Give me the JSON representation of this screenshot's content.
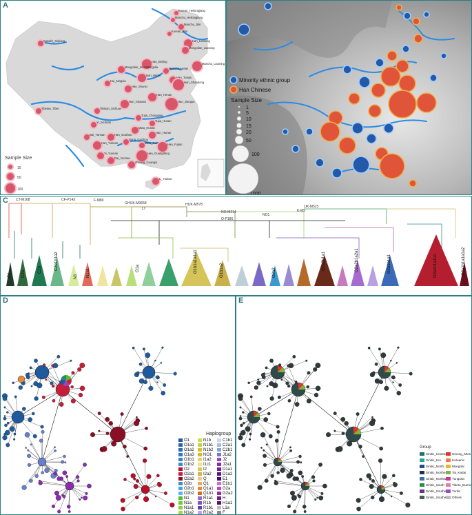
{
  "panels": {
    "a": {
      "label": "A",
      "size_title": "Sample Size",
      "size_values": [
        "10",
        "50",
        "100"
      ],
      "places": [
        {
          "name": "Kazakh_Xinjiang",
          "r": 5
        },
        {
          "name": "Korean_Heilongjiang",
          "r": 4
        },
        {
          "name": "Manchu_Heilongjiang",
          "r": 4
        },
        {
          "name": "Manchu_Jilin",
          "r": 5
        },
        {
          "name": "Korean_Jilin",
          "r": 4
        },
        {
          "name": "Han_Liaoning",
          "r": 7
        },
        {
          "name": "Mongolian_Liaoning",
          "r": 6
        },
        {
          "name": "Han_Beijing",
          "r": 8
        },
        {
          "name": "Manchu_Liaoning",
          "r": 8
        },
        {
          "name": "Mongolian_InnerMongolia",
          "r": 6
        },
        {
          "name": "Manchu_Hebei",
          "r": 5
        },
        {
          "name": "Han_Hebei",
          "r": 7
        },
        {
          "name": "Han_Tianjin",
          "r": 6
        },
        {
          "name": "Han_Shandong",
          "r": 9
        },
        {
          "name": "Hui_Ningxia",
          "r": 5
        },
        {
          "name": "Han_Shanxi",
          "r": 6
        },
        {
          "name": "Han_Henan",
          "r": 7
        },
        {
          "name": "Han_Shaanxi",
          "r": 7
        },
        {
          "name": "Han_Jiangsu",
          "r": 10
        },
        {
          "name": "Tibetan_Tibet",
          "r": 5
        },
        {
          "name": "Tibetan_Sichuan",
          "r": 5
        },
        {
          "name": "Tujia_Chongqing",
          "r": 5
        },
        {
          "name": "Tujia_Hunan",
          "r": 5
        },
        {
          "name": "Yi_Sichuan",
          "r": 5
        },
        {
          "name": "Miao_Hunan",
          "r": 6
        },
        {
          "name": "Han_Hunan",
          "r": 6
        },
        {
          "name": "Han_Guizhou",
          "r": 6
        },
        {
          "name": "Dong_Guizhou",
          "r": 5
        },
        {
          "name": "Miao_Guizhou",
          "r": 5
        },
        {
          "name": "Han_Yunnan",
          "r": 7
        },
        {
          "name": "Bai_Yunnan",
          "r": 5
        },
        {
          "name": "Han_Fujian",
          "r": 8
        },
        {
          "name": "Han_Guangdong",
          "r": 9
        },
        {
          "name": "Yi_Yunnan",
          "r": 6
        },
        {
          "name": "Dai_Yunnan",
          "r": 6
        },
        {
          "name": "Zhuang_Guangxi",
          "r": 6
        },
        {
          "name": "Li_Hainan",
          "r": 6
        }
      ]
    },
    "b": {
      "label": "B",
      "legend": [
        {
          "name": "Minority ethnic group",
          "color": "#2458a8"
        },
        {
          "name": "Han Chinese",
          "color": "#e0553a"
        }
      ],
      "size_title": "Sample Size",
      "size_values": [
        "1",
        "5",
        "10",
        "15",
        "20",
        "50",
        "100",
        "1000"
      ]
    },
    "c": {
      "label": "C",
      "markers": [
        "CT-M168",
        "CF-P143",
        "F-M89",
        "GHIJK-M3658",
        "HIJK-M578",
        "LT",
        "NO-M214",
        "NO1",
        "K-M9",
        "O-P186",
        "IJK-M523"
      ],
      "clades": [
        "C1",
        "C2a",
        "C2b",
        "C2e1b1a2",
        "N1",
        "N1a1",
        "O1a",
        "O1b1a1a1a1",
        "O1b1a2",
        "O2a2",
        "O2a2b1a1",
        "O2a2b1a2a1",
        "O2a1b1a1",
        "O2a1b1a1a1",
        "O2a1b1a1a1a2"
      ]
    },
    "d": {
      "label": "D",
      "legend_title": "Haplogroup",
      "haplogroups": [
        {
          "name": "O1",
          "color": "#1f5a9e"
        },
        {
          "name": "O1a1",
          "color": "#2462ab"
        },
        {
          "name": "O1a2",
          "color": "#2a6cb6"
        },
        {
          "name": "O1a3",
          "color": "#3176bf"
        },
        {
          "name": "O1b1",
          "color": "#3880c6"
        },
        {
          "name": "O1b2",
          "color": "#3f8acd"
        },
        {
          "name": "O2",
          "color": "#b80f2a"
        },
        {
          "name": "O2a1",
          "color": "#c41e3a"
        },
        {
          "name": "O2a2",
          "color": "#8a0f24"
        },
        {
          "name": "O2b",
          "color": "#3a8fd6"
        },
        {
          "name": "O2b1",
          "color": "#4aa1de"
        },
        {
          "name": "O2b2",
          "color": "#5ab4e6"
        },
        {
          "name": "N1",
          "color": "#4fbf2f"
        },
        {
          "name": "N1a",
          "color": "#6acb34"
        },
        {
          "name": "N1a1",
          "color": "#86d43a"
        },
        {
          "name": "N1a2",
          "color": "#a2dc40"
        },
        {
          "name": "N1b",
          "color": "#bfe446"
        },
        {
          "name": "N1b1",
          "color": "#c9cf3d"
        },
        {
          "name": "N1b2",
          "color": "#d3c234"
        },
        {
          "name": "NO1",
          "color": "#ddb52b"
        },
        {
          "name": "I1a2",
          "color": "#e7d26a"
        },
        {
          "name": "I1c1",
          "color": "#efe08a"
        },
        {
          "name": "I2",
          "color": "#d9c95a"
        },
        {
          "name": "I2a2",
          "color": "#c6b84a"
        },
        {
          "name": "Q",
          "color": "#f0c98a"
        },
        {
          "name": "Q1",
          "color": "#e8a860"
        },
        {
          "name": "Q1a1",
          "color": "#e08a3c"
        },
        {
          "name": "Q1b1",
          "color": "#d86c1e"
        },
        {
          "name": "R1a1",
          "color": "#9a6ad0"
        },
        {
          "name": "R1b",
          "color": "#7e52c0"
        },
        {
          "name": "R1b1",
          "color": "#6440ae"
        },
        {
          "name": "R2a2",
          "color": "#c4a0e6"
        },
        {
          "name": "C1b1",
          "color": "#c9d6f0"
        },
        {
          "name": "C2a1",
          "color": "#a8bde6"
        },
        {
          "name": "C2b1",
          "color": "#86a4dc"
        },
        {
          "name": "J1a2",
          "color": "#6a7fcc"
        },
        {
          "name": "J2",
          "color": "#a040c0"
        },
        {
          "name": "J2a1",
          "color": "#8a2cb0"
        },
        {
          "name": "D1a1",
          "color": "#6f1fa0"
        },
        {
          "name": "D1a2",
          "color": "#55148c"
        },
        {
          "name": "E1",
          "color": "#3e0c78"
        },
        {
          "name": "E1b1",
          "color": "#d36bd6"
        },
        {
          "name": "G2a",
          "color": "#b64bc0"
        },
        {
          "name": "G2a2",
          "color": "#962ea8"
        },
        {
          "name": "H",
          "color": "#741e88"
        },
        {
          "name": "H1a1",
          "color": "#561468"
        },
        {
          "name": "L1a",
          "color": "#bdbdbd"
        },
        {
          "name": "F",
          "color": "#8a8a8a"
        }
      ]
    },
    "e": {
      "label": "E",
      "legend_title": "Group",
      "groups": [
        {
          "name": "Sinitic_Central",
          "color": "#1f6f6a"
        },
        {
          "name": "Hmong_Mien",
          "color": "#e5322d"
        },
        {
          "name": "Sinitic_Hui",
          "color": "#2aa3a0"
        },
        {
          "name": "Koreanic",
          "color": "#f07a3a"
        },
        {
          "name": "Sinitic_North",
          "color": "#244a8a"
        },
        {
          "name": "Mongolic",
          "color": "#f2b233"
        },
        {
          "name": "Sinitic_Northeast",
          "color": "#1b2f5c"
        },
        {
          "name": "Tai_Kadai",
          "color": "#7fb63a"
        },
        {
          "name": "Sinitic_Northwest",
          "color": "#3c6fa8"
        },
        {
          "name": "Tungusic",
          "color": "#c53a8c"
        },
        {
          "name": "Sinitic_South",
          "color": "#2c8a4a"
        },
        {
          "name": "Tibeto_Burman",
          "color": "#e878b0"
        },
        {
          "name": "Sinitic_Southeast",
          "color": "#5b3a86"
        },
        {
          "name": "Turkic",
          "color": "#9c4ac6"
        },
        {
          "name": "Sinitic_Southwest",
          "color": "#4a5a64"
        },
        {
          "name": "Others",
          "color": "#bdbdbd"
        }
      ]
    }
  }
}
